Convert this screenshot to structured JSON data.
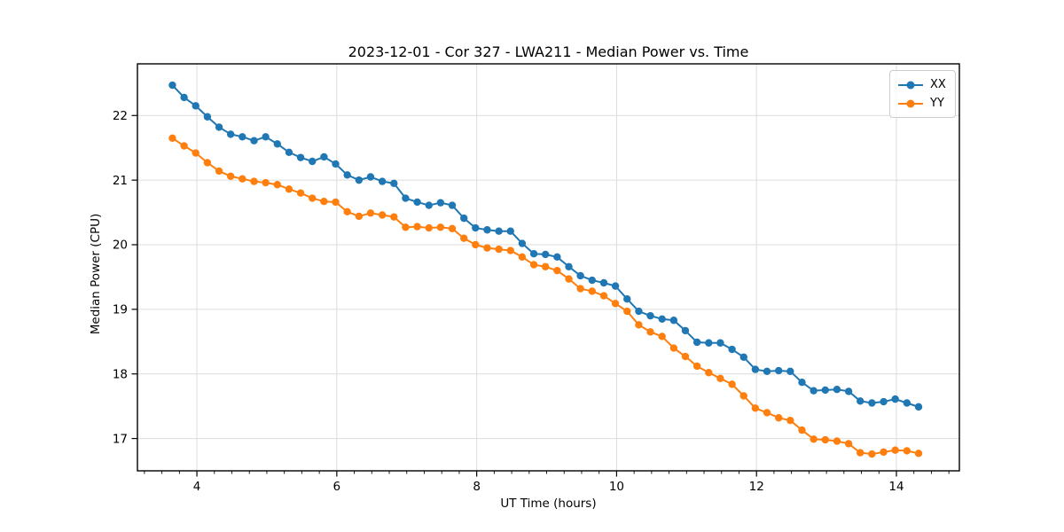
{
  "chart_data": {
    "type": "line",
    "title": "2023-12-01 - Cor 327 - LWA211 - Median Power vs. Time",
    "xlabel": "UT Time (hours)",
    "ylabel": "Median Power (CPU)",
    "xlim": [
      3.15,
      14.9
    ],
    "ylim": [
      16.5,
      22.8
    ],
    "x_ticks": [
      4,
      6,
      8,
      10,
      12,
      14
    ],
    "x_minor_tick_step": 0.25,
    "y_ticks": [
      17,
      18,
      19,
      20,
      21,
      22
    ],
    "grid": true,
    "grid_color": "#dcdcdc",
    "legend_position": "upper right",
    "background": "#ffffff",
    "x": [
      3.65,
      3.817,
      3.983,
      4.15,
      4.317,
      4.483,
      4.65,
      4.817,
      4.983,
      5.15,
      5.317,
      5.483,
      5.65,
      5.817,
      5.983,
      6.15,
      6.317,
      6.483,
      6.65,
      6.817,
      6.983,
      7.15,
      7.317,
      7.483,
      7.65,
      7.817,
      7.983,
      8.15,
      8.317,
      8.483,
      8.65,
      8.817,
      8.983,
      9.15,
      9.317,
      9.483,
      9.65,
      9.817,
      9.983,
      10.15,
      10.317,
      10.483,
      10.65,
      10.817,
      10.983,
      11.15,
      11.317,
      11.483,
      11.65,
      11.817,
      11.983,
      12.15,
      12.317,
      12.483,
      12.65,
      12.817,
      12.983,
      13.15,
      13.317,
      13.483,
      13.65,
      13.817,
      13.983,
      14.15,
      14.317
    ],
    "series": [
      {
        "name": "XX",
        "color": "#1f77b4",
        "values": [
          22.47,
          22.28,
          22.15,
          21.98,
          21.82,
          21.71,
          21.67,
          21.61,
          21.67,
          21.56,
          21.43,
          21.35,
          21.29,
          21.36,
          21.25,
          21.08,
          21.0,
          21.05,
          20.98,
          20.95,
          20.72,
          20.66,
          20.61,
          20.65,
          20.61,
          20.41,
          20.26,
          20.23,
          20.21,
          20.21,
          20.02,
          19.86,
          19.85,
          19.81,
          19.66,
          19.52,
          19.45,
          19.41,
          19.36,
          19.16,
          18.97,
          18.9,
          18.85,
          18.83,
          18.67,
          18.49,
          18.48,
          18.48,
          18.38,
          18.26,
          18.07,
          18.04,
          18.05,
          18.04,
          17.87,
          17.74,
          17.75,
          17.76,
          17.73,
          17.58,
          17.55,
          17.57,
          17.61,
          17.55,
          17.49
        ]
      },
      {
        "name": "YY",
        "color": "#ff7f0e",
        "values": [
          21.65,
          21.53,
          21.42,
          21.27,
          21.14,
          21.06,
          21.02,
          20.98,
          20.96,
          20.93,
          20.86,
          20.8,
          20.72,
          20.67,
          20.66,
          20.51,
          20.44,
          20.49,
          20.46,
          20.43,
          20.27,
          20.28,
          20.26,
          20.27,
          20.25,
          20.1,
          20.0,
          19.95,
          19.93,
          19.91,
          19.81,
          19.69,
          19.66,
          19.6,
          19.47,
          19.32,
          19.28,
          19.21,
          19.09,
          18.97,
          18.76,
          18.65,
          18.58,
          18.4,
          18.27,
          18.12,
          18.02,
          17.93,
          17.84,
          17.66,
          17.47,
          17.4,
          17.32,
          17.28,
          17.13,
          16.99,
          16.98,
          16.96,
          16.92,
          16.78,
          16.76,
          16.79,
          16.82,
          16.81,
          16.77
        ]
      }
    ]
  }
}
